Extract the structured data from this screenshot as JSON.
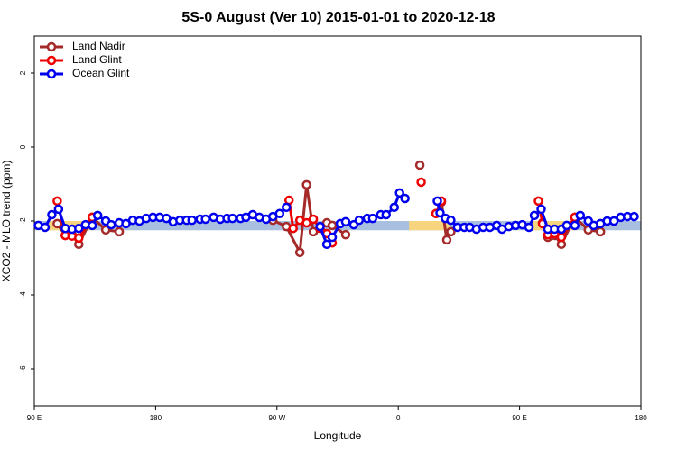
{
  "chart_data": {
    "type": "line",
    "title": "5S-0 August (Ver 10)   2015-01-01 to 2020-12-18",
    "xlabel": "Longitude",
    "ylabel": "XCO2 - MLO trend (ppm)",
    "xlim": [
      90,
      540
    ],
    "ylim": [
      -7,
      3
    ],
    "xticks": [
      {
        "value": 90,
        "label": "90 E"
      },
      180,
      {
        "value": 270,
        "label": "90 W"
      },
      {
        "value": 360,
        "label": "0"
      },
      {
        "value": 450,
        "label": "90 E"
      },
      {
        "value": 540,
        "label": "180"
      }
    ],
    "yticks": [
      2,
      0,
      -2,
      -4,
      -6
    ],
    "legend": "top-left",
    "bands": [
      {
        "color": "#a9bfe0",
        "xlim": [
          90,
          540
        ],
        "ylim": [
          -2.25,
          -2
        ]
      },
      {
        "color": "#f7d57f",
        "xlim": [
          101,
          135
        ],
        "ylim": [
          -2.25,
          -2
        ]
      },
      {
        "color": "#f7d57f",
        "xlim": [
          368,
          398
        ],
        "ylim": [
          -2.25,
          -2
        ]
      },
      {
        "color": "#f7d57f",
        "xlim": [
          458,
          491
        ],
        "ylim": [
          -2.25,
          -2
        ]
      }
    ],
    "series": [
      {
        "name": "Land Nadir",
        "color": "#a52a2a",
        "x": [
          107,
          113,
          118,
          123,
          133,
          143,
          153,
          200,
          267,
          277,
          287,
          292,
          297,
          307,
          311,
          321,
          350,
          376,
          380,
          388,
          392,
          396,
          399,
          430,
          467,
          471,
          476,
          481,
          491,
          501,
          510
        ],
        "values": [
          -2.07,
          -2.39,
          -2.37,
          -2.63,
          -1.9,
          -2.24,
          -2.29,
          null,
          -1.98,
          -2.15,
          -2.85,
          -1.02,
          -2.29,
          -2.05,
          -2.12,
          -2.37,
          null,
          -0.49,
          null,
          -1.8,
          -1.49,
          -2.51,
          -2.29,
          null,
          -2.05,
          -2.44,
          -2.39,
          -2.63,
          -1.9,
          -2.24,
          -2.29
        ]
      },
      {
        "name": "Land Glint",
        "color": "#ee0000",
        "x": [
          107,
          113,
          118,
          123,
          133,
          200,
          279,
          282,
          287,
          292,
          297,
          302,
          307,
          311,
          340,
          377,
          382,
          388,
          392,
          430,
          464,
          467,
          471,
          476,
          481,
          491
        ],
        "values": [
          -1.46,
          -2.39,
          -2.41,
          -2.46,
          -1.9,
          null,
          -1.44,
          -2.2,
          -1.98,
          -2.05,
          -1.95,
          -2.2,
          -2.34,
          -2.59,
          null,
          -0.95,
          null,
          -1.8,
          -1.46,
          null,
          -1.46,
          -2.07,
          -2.37,
          -2.34,
          -2.44,
          -1.9
        ]
      },
      {
        "name": "Ocean Glint",
        "color": "#0000ee",
        "x": [
          93,
          98,
          103,
          108,
          113,
          118,
          123,
          128,
          133,
          137,
          143,
          147,
          153,
          158,
          163,
          168,
          173,
          178,
          183,
          188,
          193,
          198,
          203,
          207,
          213,
          217,
          223,
          228,
          233,
          237,
          243,
          247,
          252,
          257,
          262,
          267,
          272,
          277,
          290,
          302,
          307,
          311,
          317,
          321,
          327,
          331,
          337,
          341,
          347,
          351,
          357,
          361,
          365,
          377,
          389,
          391,
          395,
          399,
          404,
          409,
          413,
          418,
          423,
          428,
          433,
          437,
          442,
          447,
          452,
          457,
          461,
          466,
          471,
          476,
          481,
          485,
          491,
          495,
          501,
          505,
          510,
          515,
          520,
          525,
          530,
          535
        ],
        "values": [
          -2.12,
          -2.17,
          -1.83,
          -1.68,
          -2.2,
          -2.22,
          -2.2,
          -2.1,
          -2.12,
          -1.85,
          -2.0,
          -2.1,
          -2.05,
          -2.07,
          -1.98,
          -2.0,
          -1.93,
          -1.9,
          -1.9,
          -1.93,
          -2.02,
          -1.98,
          -1.98,
          -1.98,
          -1.95,
          -1.95,
          -1.9,
          -1.95,
          -1.93,
          -1.93,
          -1.93,
          -1.9,
          -1.83,
          -1.9,
          -1.95,
          -1.88,
          -1.8,
          -1.63,
          null,
          -2.15,
          -2.63,
          -2.44,
          -2.07,
          -2.02,
          -2.1,
          -1.98,
          -1.93,
          -1.93,
          -1.83,
          -1.83,
          -1.63,
          -1.24,
          -1.39,
          null,
          -1.46,
          -1.78,
          -1.93,
          -1.98,
          -2.17,
          -2.17,
          -2.17,
          -2.22,
          -2.17,
          -2.17,
          -2.12,
          -2.22,
          -2.15,
          -2.12,
          -2.1,
          -2.17,
          -1.85,
          -1.68,
          -2.22,
          -2.22,
          -2.22,
          -2.12,
          -2.12,
          -1.85,
          -2.0,
          -2.12,
          -2.07,
          -2.0,
          -2.0,
          -1.9,
          -1.88,
          -1.88
        ]
      }
    ]
  }
}
